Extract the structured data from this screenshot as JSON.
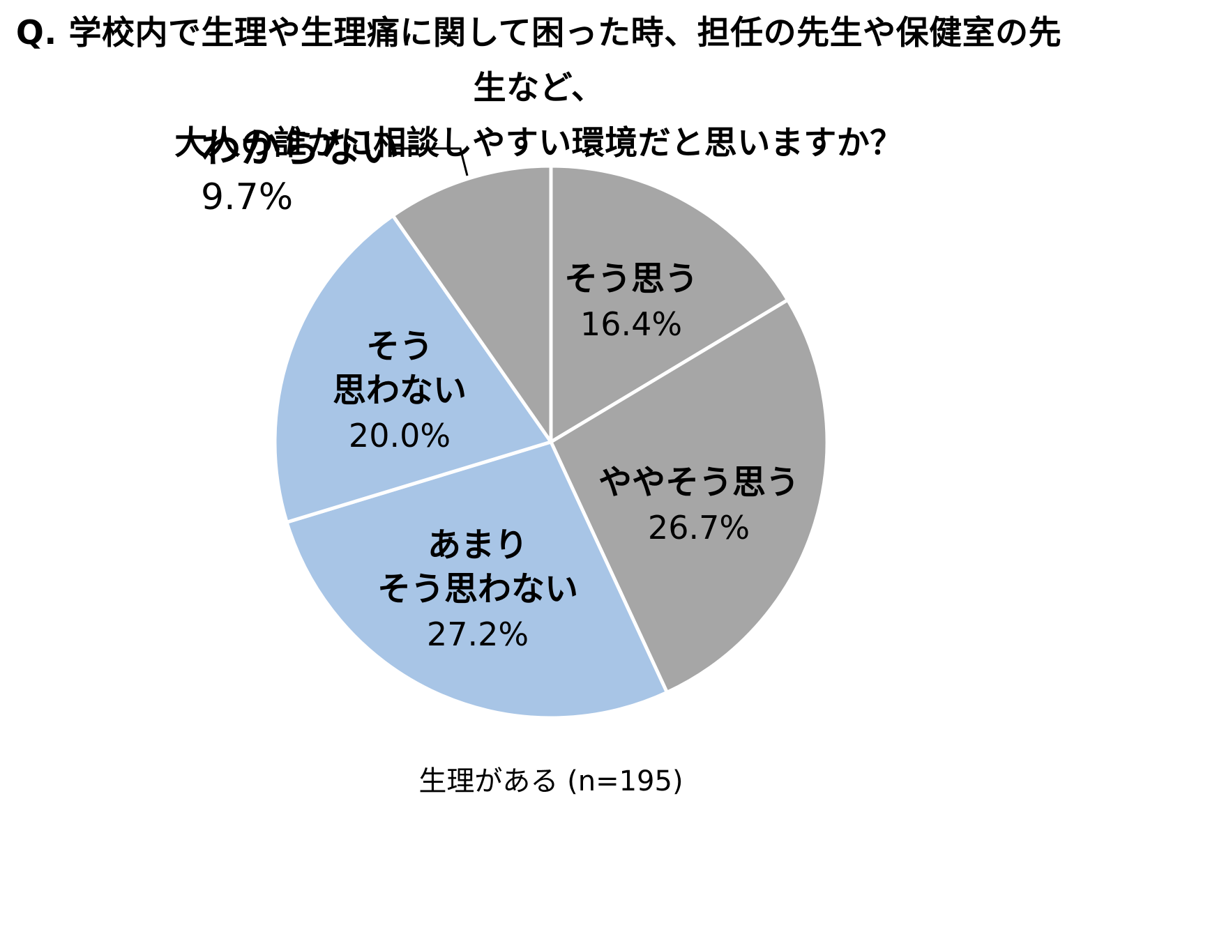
{
  "chart_data": {
    "type": "pie",
    "title": "Q. 学校内で生理や生理痛に関して困った時、担任の先生や保健室の先生など、大人の誰かに相談しやすい環境だと思いますか？",
    "title_lines": [
      "Q. 学校内で生理や生理痛に関して困った時、担任の先生や保健室の先生など、",
      "大人の誰かに相談しやすい環境だと思いますか？"
    ],
    "caption": "生理がある (n=195)",
    "start_angle": "top",
    "direction": "clockwise",
    "legend_position": "none",
    "colors": {
      "gray": "#a6a6a6",
      "blue": "#a8c5e6"
    },
    "slices": [
      {
        "label": "そう思う",
        "value": 16.4,
        "display": "16.4%",
        "color": "#a6a6a6",
        "label_lines": [
          "そう思う"
        ],
        "placement": "inside"
      },
      {
        "label": "ややそう思う",
        "value": 26.7,
        "display": "26.7%",
        "color": "#a6a6a6",
        "label_lines": [
          "ややそう思う"
        ],
        "placement": "inside"
      },
      {
        "label": "あまりそう思わない",
        "value": 27.2,
        "display": "27.2%",
        "color": "#a8c5e6",
        "label_lines": [
          "あまり",
          "そう思わない"
        ],
        "placement": "inside"
      },
      {
        "label": "そう思わない",
        "value": 20.0,
        "display": "20.0%",
        "color": "#a8c5e6",
        "label_lines": [
          "そう",
          "思わない"
        ],
        "placement": "inside"
      },
      {
        "label": "わからない",
        "value": 9.7,
        "display": "9.7%",
        "color": "#a6a6a6",
        "label_lines": [
          "わからない"
        ],
        "placement": "outside"
      }
    ]
  }
}
